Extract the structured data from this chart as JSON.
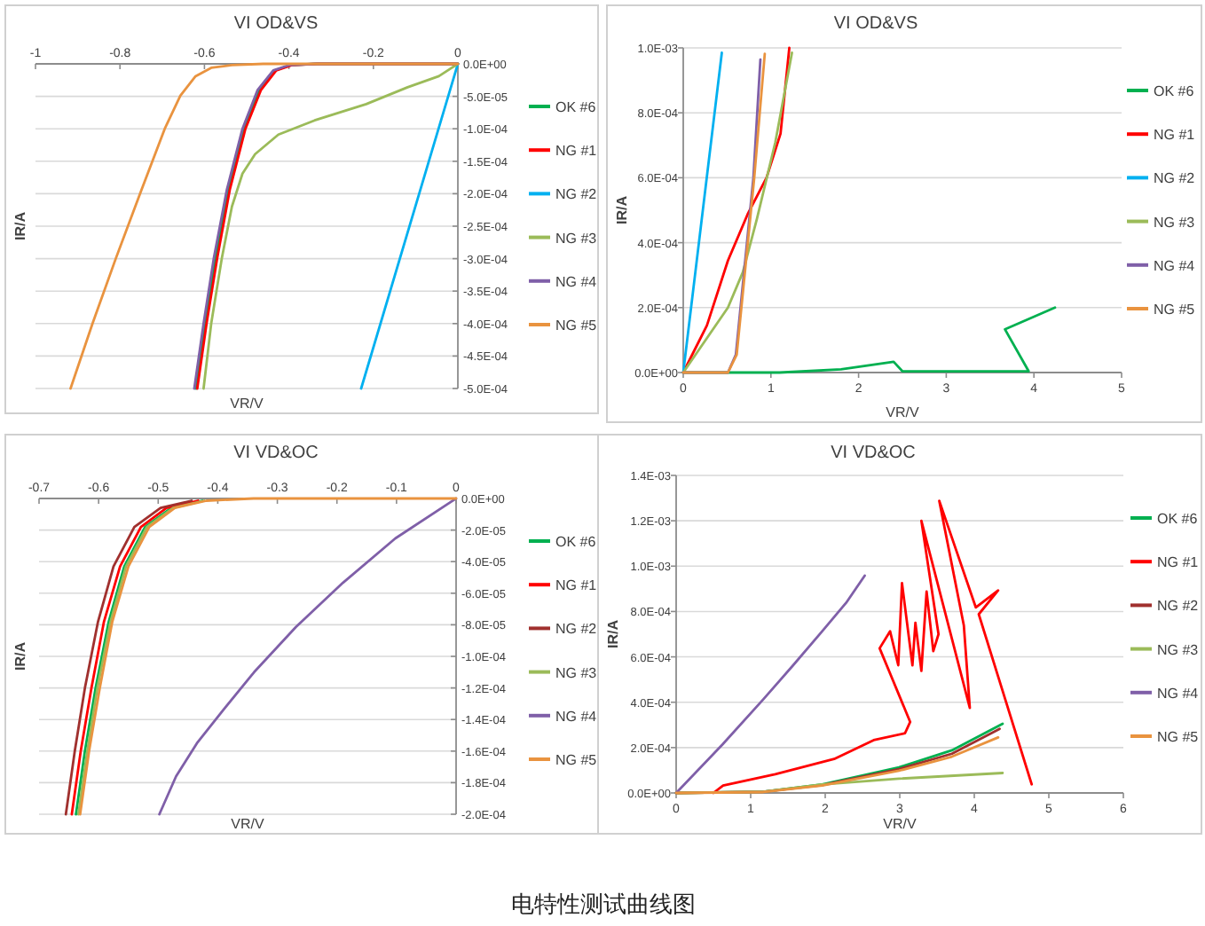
{
  "chart_data": [
    {
      "type": "line",
      "title": "VI OD&VS",
      "xlabel": "VR/V",
      "ylabel": "IR/A",
      "xlim": [
        -1,
        0
      ],
      "ylim": [
        -0.0005,
        0
      ],
      "xticks": [
        -1,
        -0.8,
        -0.6,
        -0.4,
        -0.2,
        0
      ],
      "yticks": [
        {
          "value": 0,
          "label": "0.0E+00"
        },
        {
          "value": -5e-05,
          "label": "-5.0E-05"
        },
        {
          "value": -0.0001,
          "label": "-1.0E-04"
        },
        {
          "value": -0.00015,
          "label": "-1.5E-04"
        },
        {
          "value": -0.0002,
          "label": "-2.0E-04"
        },
        {
          "value": -0.00025,
          "label": "-2.5E-04"
        },
        {
          "value": -0.0003,
          "label": "-3.0E-04"
        },
        {
          "value": -0.00035,
          "label": "-3.5E-04"
        },
        {
          "value": -0.0004,
          "label": "-4.0E-04"
        },
        {
          "value": -0.00045,
          "label": "-4.5E-04"
        },
        {
          "value": -0.0005,
          "label": "-5.0E-04"
        }
      ],
      "grid": "y",
      "legend": "right",
      "series": [
        {
          "name": "OK #6",
          "color": "#00b050",
          "x": [
            -0.62,
            -0.598,
            -0.574,
            -0.543,
            -0.506,
            -0.47,
            -0.433,
            -0.396,
            -0.335,
            0
          ],
          "values": [
            -0.0005,
            -0.0004,
            -0.0003,
            -0.000194,
            -0.0001,
            -4e-05,
            -1e-05,
            -2e-06,
            0,
            0
          ]
        },
        {
          "name": "NG #1",
          "color": "#ff0000",
          "x": [
            -0.617,
            -0.595,
            -0.57,
            -0.54,
            -0.503,
            -0.466,
            -0.43,
            -0.393,
            -0.332,
            0
          ],
          "values": [
            -0.0005,
            -0.0004,
            -0.0003,
            -0.000194,
            -0.0001,
            -4e-05,
            -1e-05,
            -2e-06,
            0,
            0
          ]
        },
        {
          "name": "NG #2",
          "color": "#00b0f0",
          "x": [
            -0.229,
            0
          ],
          "values": [
            -0.0005,
            0
          ]
        },
        {
          "name": "NG #3",
          "color": "#9bbb59",
          "x": [
            -0.602,
            -0.584,
            -0.559,
            -0.535,
            -0.51,
            -0.48,
            -0.425,
            -0.339,
            -0.217,
            -0.119,
            -0.045,
            0
          ],
          "values": [
            -0.0005,
            -0.0004,
            -0.0003,
            -0.00022,
            -0.000169,
            -0.000139,
            -0.000109,
            -8.7e-05,
            -6.2e-05,
            -3.6e-05,
            -1.9e-05,
            0
          ]
        },
        {
          "name": "NG #4",
          "color": "#7f5fa8",
          "x": [
            -0.624,
            -0.602,
            -0.578,
            -0.547,
            -0.51,
            -0.474,
            -0.437,
            -0.4,
            -0.339,
            0
          ],
          "values": [
            -0.0005,
            -0.0004,
            -0.0003,
            -0.000194,
            -0.0001,
            -4e-05,
            -1e-05,
            -2e-06,
            0,
            0
          ]
        },
        {
          "name": "NG #5",
          "color": "#e9933f",
          "x": [
            -0.917,
            -0.865,
            -0.81,
            -0.749,
            -0.694,
            -0.657,
            -0.621,
            -0.584,
            -0.535,
            -0.461,
            0
          ],
          "values": [
            -0.0005,
            -0.0004,
            -0.0003,
            -0.000194,
            -0.0001,
            -4.9e-05,
            -1.9e-05,
            -6e-06,
            -2e-06,
            0,
            0
          ]
        }
      ]
    },
    {
      "type": "line",
      "title": "VI OD&VS",
      "xlabel": "VR/V",
      "ylabel": "IR/A",
      "xlim": [
        0,
        5
      ],
      "ylim": [
        0,
        0.001
      ],
      "xticks": [
        0,
        1,
        2,
        3,
        4,
        5
      ],
      "yticks": [
        {
          "value": 0,
          "label": "0.0E+00"
        },
        {
          "value": 0.0002,
          "label": "2.0E-04"
        },
        {
          "value": 0.0004,
          "label": "4.0E-04"
        },
        {
          "value": 0.0006,
          "label": "6.0E-04"
        },
        {
          "value": 0.0008,
          "label": "8.0E-04"
        },
        {
          "value": 0.001,
          "label": "1.0E-03"
        }
      ],
      "grid": "y",
      "legend": "right",
      "series": [
        {
          "name": "OK #6",
          "color": "#00b050",
          "x": [
            0,
            1.1,
            1.8,
            2.4,
            2.5,
            3.94,
            3.67,
            4.24
          ],
          "values": [
            0,
            0,
            1e-05,
            3.3e-05,
            4e-06,
            4e-06,
            0.000133,
            0.0002
          ]
        },
        {
          "name": "NG #1",
          "color": "#ff0000",
          "x": [
            0,
            0.27,
            0.51,
            0.74,
            0.95,
            1.11,
            1.21
          ],
          "values": [
            0,
            0.000145,
            0.000345,
            0.000491,
            0.0006,
            0.000736,
            0.001
          ]
        },
        {
          "name": "NG #2",
          "color": "#00b0f0",
          "x": [
            0,
            0.44
          ],
          "values": [
            0,
            0.000985
          ]
        },
        {
          "name": "NG #3",
          "color": "#9bbb59",
          "x": [
            0,
            0.51,
            0.68,
            0.84,
            1.05,
            1.24
          ],
          "values": [
            0,
            0.0002,
            0.000309,
            0.000473,
            0.000709,
            0.000985
          ]
        },
        {
          "name": "NG #4",
          "color": "#7f5fa8",
          "x": [
            0,
            0.51,
            0.6,
            0.7,
            0.8,
            0.88
          ],
          "values": [
            0,
            0,
            5.5e-05,
            0.000327,
            0.0006,
            0.000964
          ]
        },
        {
          "name": "NG #5",
          "color": "#e9933f",
          "x": [
            0,
            0.51,
            0.61,
            0.71,
            0.81,
            0.93
          ],
          "values": [
            0,
            0,
            5.5e-05,
            0.000327,
            0.0006,
            0.000982
          ]
        }
      ]
    },
    {
      "type": "line",
      "title": "VI VD&OC",
      "xlabel": "VR/V",
      "ylabel": "IR/A",
      "xlim": [
        -0.7,
        0
      ],
      "ylim": [
        -0.0002,
        0
      ],
      "xticks": [
        -0.7,
        -0.6,
        -0.5,
        -0.4,
        -0.3,
        -0.2,
        -0.1,
        0
      ],
      "yticks": [
        {
          "value": 0,
          "label": "0.0E+00"
        },
        {
          "value": -2e-05,
          "label": "-2.0E-05"
        },
        {
          "value": -4e-05,
          "label": "-4.0E-05"
        },
        {
          "value": -6e-05,
          "label": "-6.0E-05"
        },
        {
          "value": -8e-05,
          "label": "-8.0E-05"
        },
        {
          "value": -0.0001,
          "label": "-1.0E-04"
        },
        {
          "value": -0.00012,
          "label": "-1.2E-04"
        },
        {
          "value": -0.00014,
          "label": "-1.4E-04"
        },
        {
          "value": -0.00016,
          "label": "-1.6E-04"
        },
        {
          "value": -0.00018,
          "label": "-1.8E-04"
        },
        {
          "value": -0.0002,
          "label": "-2.0E-04"
        }
      ],
      "grid": "y",
      "legend": "right",
      "series": [
        {
          "name": "OK #6",
          "color": "#00b050",
          "x": [
            -0.638,
            -0.623,
            -0.605,
            -0.583,
            -0.557,
            -0.522,
            -0.478,
            -0.426
          ],
          "values": [
            -0.0002,
            -0.00016,
            -0.00012,
            -7.8e-05,
            -4.3e-05,
            -1.8e-05,
            -6e-06,
            -1.4e-06
          ]
        },
        {
          "name": "NG #1",
          "color": "#ff0000",
          "x": [
            -0.645,
            -0.63,
            -0.612,
            -0.591,
            -0.564,
            -0.529,
            -0.486,
            -0.433
          ],
          "values": [
            -0.0002,
            -0.00016,
            -0.00012,
            -7.8e-05,
            -4.3e-05,
            -1.8e-05,
            -6e-06,
            -1.4e-06
          ]
        },
        {
          "name": "NG #2",
          "color": "#a0302e",
          "x": [
            -0.655,
            -0.64,
            -0.623,
            -0.601,
            -0.575,
            -0.54,
            -0.496,
            -0.444
          ],
          "values": [
            -0.0002,
            -0.00016,
            -0.00012,
            -7.8e-05,
            -4.3e-05,
            -1.8e-05,
            -6e-06,
            -1.4e-06
          ]
        },
        {
          "name": "NG #3",
          "color": "#9bbb59",
          "x": [
            -0.634,
            -0.619,
            -0.602,
            -0.58,
            -0.554,
            -0.519,
            -0.475,
            -0.423
          ],
          "values": [
            -0.0002,
            -0.00016,
            -0.00012,
            -7.8e-05,
            -4.3e-05,
            -1.8e-05,
            -6e-06,
            -1.4e-06
          ]
        },
        {
          "name": "NG #4",
          "color": "#7f5fa8",
          "x": [
            -0.498,
            -0.47,
            -0.435,
            -0.391,
            -0.339,
            -0.269,
            -0.19,
            -0.102,
            0
          ],
          "values": [
            -0.0002,
            -0.000176,
            -0.000155,
            -0.000134,
            -0.00011,
            -8.15e-05,
            -5.34e-05,
            -2.53e-05,
            0
          ]
        },
        {
          "name": "NG #5",
          "color": "#e9933f",
          "x": [
            -0.631,
            -0.616,
            -0.598,
            -0.577,
            -0.55,
            -0.515,
            -0.472,
            -0.419,
            -0.34,
            0
          ],
          "values": [
            -0.0002,
            -0.00016,
            -0.00012,
            -7.8e-05,
            -4.3e-05,
            -1.8e-05,
            -6e-06,
            -1.4e-06,
            0,
            0
          ]
        }
      ]
    },
    {
      "type": "line",
      "title": "VI VD&OC",
      "xlabel": "VR/V",
      "ylabel": "IR/A",
      "xlim": [
        0,
        6
      ],
      "ylim": [
        0,
        0.0014
      ],
      "xticks": [
        0,
        1,
        2,
        3,
        4,
        5,
        6
      ],
      "yticks": [
        {
          "value": 0,
          "label": "0.0E+00"
        },
        {
          "value": 0.0002,
          "label": "2.0E-04"
        },
        {
          "value": 0.0004,
          "label": "4.0E-04"
        },
        {
          "value": 0.0006,
          "label": "6.0E-04"
        },
        {
          "value": 0.0008,
          "label": "8.0E-04"
        },
        {
          "value": 0.001,
          "label": "1.0E-03"
        },
        {
          "value": 0.0012,
          "label": "1.2E-03"
        },
        {
          "value": 0.0014,
          "label": "1.4E-03"
        }
      ],
      "grid": "y",
      "legend": "right",
      "annotations": [
        "电特性测试曲线图"
      ],
      "series": [
        {
          "name": "OK #6",
          "color": "#00b050",
          "x": [
            0,
            1.17,
            1.96,
            2.99,
            3.7,
            4.38
          ],
          "values": [
            0,
            5e-06,
            3.8e-05,
            0.000113,
            0.000188,
            0.000305
          ]
        },
        {
          "name": "NG #1",
          "color": "#ff0000",
          "x": [
            0.5,
            0.63,
            1.33,
            2.12,
            2.65,
            3.07,
            3.14,
            2.73,
            2.87,
            2.98,
            3.03,
            3.17,
            3.21,
            3.29,
            3.36,
            3.45,
            3.52,
            3.29,
            3.94,
            3.86,
            3.53,
            4.02,
            4.32,
            4.06,
            4.77
          ],
          "values": [
            0,
            3.3e-05,
            8.3e-05,
            0.00015,
            0.000233,
            0.000263,
            0.000313,
            0.000638,
            0.000713,
            0.000563,
            0.000925,
            0.000563,
            0.00075,
            0.000538,
            0.000888,
            0.000625,
            0.0007,
            0.0012,
            0.000375,
            0.000738,
            0.001288,
            0.000818,
            0.000893,
            0.000788,
            3.8e-05
          ]
        },
        {
          "name": "NG #2",
          "color": "#a0302e",
          "x": [
            0,
            1.17,
            1.96,
            2.99,
            3.7,
            4.34
          ],
          "values": [
            0,
            5e-06,
            3.5e-05,
            0.000105,
            0.000173,
            0.000283
          ]
        },
        {
          "name": "NG #3",
          "color": "#9bbb59",
          "x": [
            0,
            1.17,
            1.96,
            2.99,
            4.38
          ],
          "values": [
            0,
            5e-06,
            3.8e-05,
            6.3e-05,
            8.8e-05
          ]
        },
        {
          "name": "NG #4",
          "color": "#7f5fa8",
          "x": [
            0,
            0.62,
            1.17,
            1.57,
            1.96,
            2.28,
            2.53
          ],
          "values": [
            0,
            0.000213,
            0.000413,
            0.000563,
            0.000713,
            0.000838,
            0.000958
          ]
        },
        {
          "name": "NG #5",
          "color": "#e9933f",
          "x": [
            0,
            1.17,
            1.96,
            2.99,
            3.7,
            4.32
          ],
          "values": [
            0,
            4e-06,
            3.3e-05,
            9.8e-05,
            0.00016,
            0.000245
          ]
        }
      ]
    }
  ]
}
